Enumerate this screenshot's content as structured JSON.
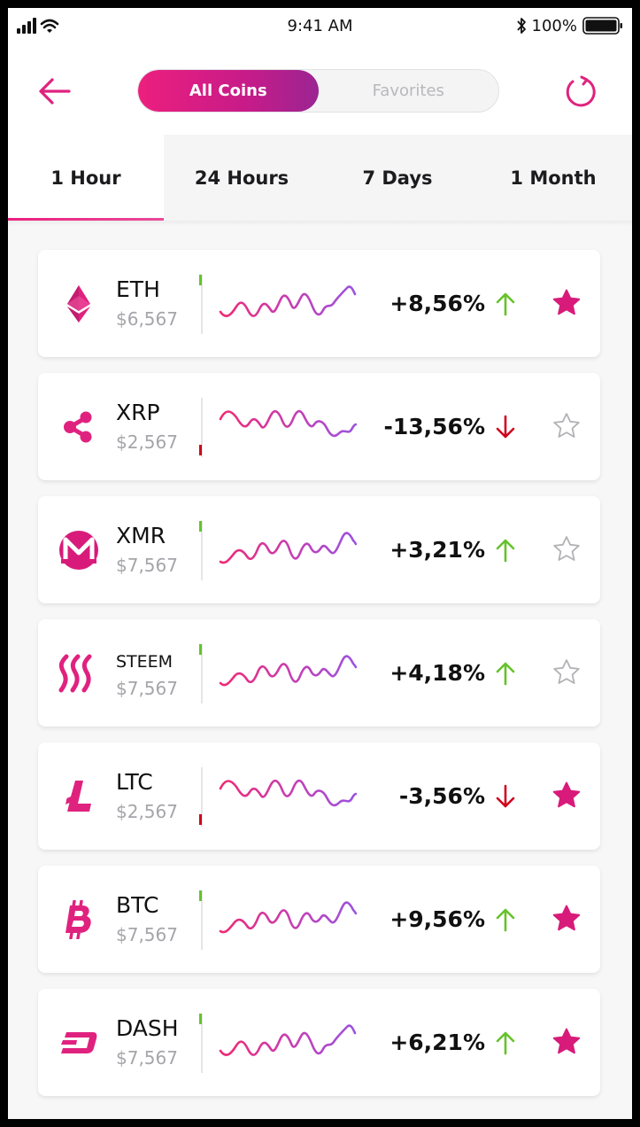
{
  "status_bar": {
    "time": "9:41 AM",
    "battery": "100%"
  },
  "header": {
    "segments": [
      {
        "label": "All Coins",
        "active": true
      },
      {
        "label": "Favorites",
        "active": false
      }
    ]
  },
  "tabs": [
    {
      "label": "1 Hour",
      "active": true
    },
    {
      "label": "24 Hours",
      "active": false
    },
    {
      "label": "7 Days",
      "active": false
    },
    {
      "label": "1 Month",
      "active": false
    }
  ],
  "colors": {
    "accent": "#ec1f7e",
    "accent_end": "#9a2592",
    "up": "#65c32a",
    "down": "#d0021b"
  },
  "coins": [
    {
      "symbol": "ETH",
      "price": "$6,567",
      "change": "+8,56%",
      "direction": "up",
      "favorite": true,
      "icon": "ethereum-icon"
    },
    {
      "symbol": "XRP",
      "price": "$2,567",
      "change": "-13,56%",
      "direction": "down",
      "favorite": false,
      "icon": "ripple-icon"
    },
    {
      "symbol": "XMR",
      "price": "$7,567",
      "change": "+3,21%",
      "direction": "up",
      "favorite": false,
      "icon": "monero-icon"
    },
    {
      "symbol": "STEEM",
      "price": "$7,567",
      "change": "+4,18%",
      "direction": "up",
      "favorite": false,
      "icon": "steem-icon"
    },
    {
      "symbol": "LTC",
      "price": "$2,567",
      "change": "-3,56%",
      "direction": "down",
      "favorite": true,
      "icon": "litecoin-icon"
    },
    {
      "symbol": "BTC",
      "price": "$7,567",
      "change": "+9,56%",
      "direction": "up",
      "favorite": true,
      "icon": "bitcoin-icon"
    },
    {
      "symbol": "DASH",
      "price": "$7,567",
      "change": "+6,21%",
      "direction": "up",
      "favorite": true,
      "icon": "dash-icon"
    }
  ]
}
